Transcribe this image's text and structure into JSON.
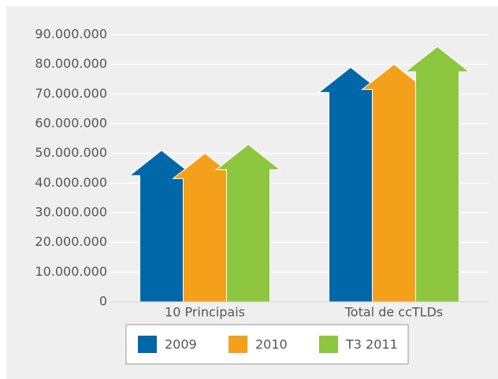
{
  "chart_data": {
    "type": "arrow-bar",
    "categories": [
      "10 Principais",
      "Total de ccTLDs"
    ],
    "series": [
      {
        "name": "2009",
        "color": "#0067a8",
        "values": [
          51000000,
          79000000
        ]
      },
      {
        "name": "2010",
        "color": "#f5a01a",
        "values": [
          50000000,
          80000000
        ]
      },
      {
        "name": "T3 2011",
        "color": "#8dc63f",
        "values": [
          53000000,
          86000000
        ]
      }
    ],
    "ylim": [
      0,
      90000000
    ],
    "yticks": [
      0,
      {
        "value": 10000000,
        "label": "10.000.000"
      },
      {
        "value": 20000000,
        "label": "20.000.000"
      },
      {
        "value": 30000000,
        "label": "30.000.000"
      },
      {
        "value": 40000000,
        "label": "40.000.000"
      },
      {
        "value": 50000000,
        "label": "50.000.000"
      },
      {
        "value": 60000000,
        "label": "60.000.000"
      },
      {
        "value": 70000000,
        "label": "70.000.000"
      },
      {
        "value": 80000000,
        "label": "80.000.000"
      },
      {
        "value": 90000000,
        "label": "90.000.000"
      }
    ],
    "grid": true,
    "legend": "bottom"
  }
}
